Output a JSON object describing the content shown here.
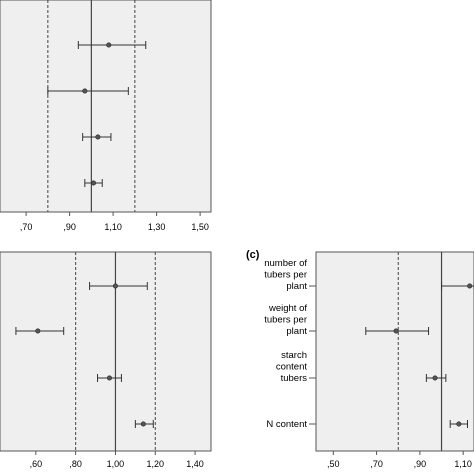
{
  "colors": {
    "panel_bg": "#efefef",
    "frame": "#555555",
    "ref_line": "#444444",
    "ci_line": "#333333",
    "point_fill": "#555555"
  },
  "panel_c_label": "(c)",
  "chart_data": [
    {
      "type": "forest",
      "title": "",
      "xlim": [
        0.58,
        1.55
      ],
      "xticks": [
        0.7,
        0.9,
        1.1,
        1.3,
        1.5
      ],
      "tick_labels": [
        ",70",
        ",90",
        "1,10",
        "1,30",
        "1,50"
      ],
      "reference_line": 1.0,
      "dashed_lines": [
        0.8,
        1.2
      ],
      "rows": [
        {
          "category": "",
          "estimate": 1.08,
          "lower": 0.94,
          "upper": 1.25
        },
        {
          "category": "",
          "estimate": 0.97,
          "lower": 0.8,
          "upper": 1.17
        },
        {
          "category": "",
          "estimate": 1.03,
          "lower": 0.96,
          "upper": 1.09
        },
        {
          "category": "",
          "estimate": 1.01,
          "lower": 0.97,
          "upper": 1.05
        }
      ]
    },
    {
      "type": "forest",
      "title": "",
      "xlim": [
        0.42,
        1.48
      ],
      "xticks": [
        0.6,
        0.8,
        1.0,
        1.2,
        1.4
      ],
      "tick_labels": [
        ",60",
        ",80",
        "1,00",
        "1,20",
        "1,40"
      ],
      "reference_line": 1.0,
      "dashed_lines": [
        0.8,
        1.2
      ],
      "rows": [
        {
          "category": "",
          "estimate": 1.0,
          "lower": 0.87,
          "upper": 1.16
        },
        {
          "category": "",
          "estimate": 0.61,
          "lower": 0.5,
          "upper": 0.74
        },
        {
          "category": "",
          "estimate": 0.97,
          "lower": 0.91,
          "upper": 1.03
        },
        {
          "category": "",
          "estimate": 1.14,
          "lower": 1.1,
          "upper": 1.19
        }
      ]
    },
    {
      "type": "forest",
      "title": "",
      "xlim": [
        0.42,
        1.15
      ],
      "xticks": [
        0.5,
        0.7,
        0.9,
        1.1
      ],
      "tick_labels": [
        ",50",
        ",70",
        ",90",
        "1,10"
      ],
      "reference_line": 1.0,
      "dashed_lines": [
        0.8
      ],
      "rows": [
        {
          "category": "number of tubers per plant",
          "category_lines": [
            "number of",
            "tubers per",
            "plant"
          ],
          "estimate": 1.13,
          "lower": 1.0,
          "upper": 1.15
        },
        {
          "category": "weight of tubers per plant",
          "category_lines": [
            "weight of",
            "tubers per",
            "plant"
          ],
          "estimate": 0.79,
          "lower": 0.65,
          "upper": 0.94
        },
        {
          "category": "starch content tubers",
          "category_lines": [
            "starch",
            "content",
            "tubers"
          ],
          "estimate": 0.97,
          "lower": 0.93,
          "upper": 1.02
        },
        {
          "category": "N content",
          "category_lines": [
            "N content"
          ],
          "estimate": 1.08,
          "lower": 1.04,
          "upper": 1.12
        }
      ]
    }
  ]
}
